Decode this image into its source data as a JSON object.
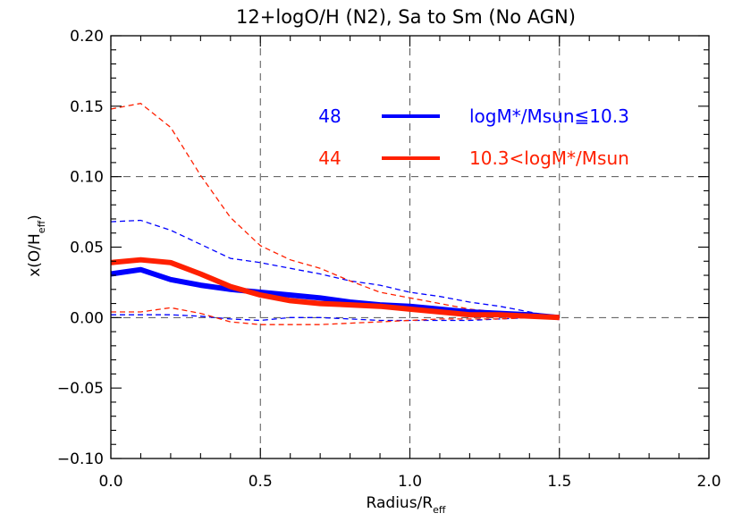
{
  "chart_data": {
    "type": "line",
    "title": "12+logO/H (N2), Sa to Sm (No AGN)",
    "xlabel": {
      "main": "Radius/R",
      "sub": "eff"
    },
    "ylabel": {
      "main": "x(O/H",
      "sub": "eff",
      "close": ")"
    },
    "xlim": [
      0.0,
      2.0
    ],
    "ylim": [
      -0.1,
      0.2
    ],
    "xticks": [
      0.0,
      0.5,
      1.0,
      1.5,
      2.0
    ],
    "xtick_labels": [
      "0.0",
      "0.5",
      "1.0",
      "1.5",
      "2.0"
    ],
    "yticks": [
      -0.1,
      -0.05,
      0.0,
      0.05,
      0.1,
      0.15,
      0.2
    ],
    "ytick_labels": [
      "−0.10",
      "−0.05",
      "0.00",
      "0.05",
      "0.10",
      "0.15",
      "0.20"
    ],
    "grid_x": [
      0.5,
      1.0,
      1.5
    ],
    "grid_y": [
      0.1,
      0.0
    ],
    "legend_position": "top-right",
    "x": [
      0.0,
      0.1,
      0.2,
      0.3,
      0.4,
      0.5,
      0.6,
      0.7,
      0.8,
      0.9,
      1.0,
      1.1,
      1.2,
      1.3,
      1.4,
      1.5
    ],
    "series": [
      {
        "name": "logM*/Msun≦10.3",
        "count": "48",
        "color": "#0000ff",
        "values": [
          0.031,
          0.034,
          0.027,
          0.023,
          0.02,
          0.018,
          0.016,
          0.014,
          0.011,
          0.009,
          0.008,
          0.006,
          0.004,
          0.003,
          0.002,
          0.0
        ],
        "upper": [
          0.068,
          0.069,
          0.062,
          0.052,
          0.042,
          0.039,
          0.035,
          0.031,
          0.026,
          0.023,
          0.018,
          0.015,
          0.011,
          0.008,
          0.004,
          0.0
        ],
        "lower": [
          0.002,
          0.002,
          0.002,
          0.001,
          -0.001,
          -0.002,
          0.0,
          0.0,
          -0.001,
          -0.002,
          -0.002,
          -0.002,
          -0.002,
          -0.001,
          0.0,
          0.0
        ]
      },
      {
        "name": "10.3<logM*/Msun",
        "count": "44",
        "color": "#ff2000",
        "values": [
          0.039,
          0.041,
          0.039,
          0.031,
          0.022,
          0.016,
          0.012,
          0.01,
          0.009,
          0.008,
          0.006,
          0.004,
          0.002,
          0.002,
          0.001,
          0.0
        ],
        "upper": [
          0.148,
          0.152,
          0.135,
          0.101,
          0.071,
          0.051,
          0.041,
          0.035,
          0.026,
          0.018,
          0.014,
          0.01,
          0.006,
          0.004,
          0.002,
          0.0
        ],
        "lower": [
          0.004,
          0.004,
          0.007,
          0.003,
          -0.003,
          -0.005,
          -0.005,
          -0.005,
          -0.004,
          -0.003,
          -0.002,
          -0.001,
          -0.001,
          -0.001,
          0.0,
          0.0
        ]
      }
    ]
  }
}
